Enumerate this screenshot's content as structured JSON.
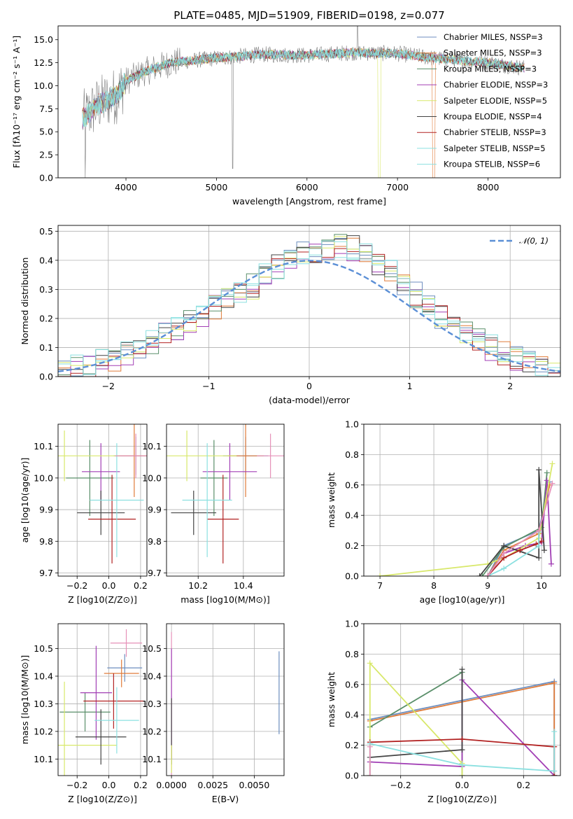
{
  "title": "PLATE=0485, MJD=51909, FIBERID=0198, z=0.077",
  "colors": [
    "#6c8ebf",
    "#e07b39",
    "#5a8f6a",
    "#a23fb5",
    "#d8e86a",
    "#444444",
    "#b22222",
    "#8be0e0",
    "#e691b8",
    "#999999"
  ],
  "chart_data": [
    {
      "id": "spectrum",
      "type": "line",
      "title": "PLATE=0485, MJD=51909, FIBERID=0198, z=0.077",
      "xlabel": "wavelength [Angstrom, rest frame]",
      "ylabel": "Flux [fλ10⁻¹⁷ erg cm⁻² s⁻¹ A⁻¹]",
      "xlim": [
        3250,
        8800
      ],
      "ylim": [
        0,
        16.5
      ],
      "xticks": [
        "4000",
        "5000",
        "6000",
        "7000",
        "8000"
      ],
      "yticks": [
        "0.0",
        "2.5",
        "5.0",
        "7.5",
        "10.0",
        "12.5",
        "15.0"
      ],
      "legend": [
        "Chabrier MILES, NSSP=3",
        "Salpeter MILES, NSSP=3",
        "Kroupa MILES, NSSP=3",
        "Chabrier ELODIE, NSSP=3",
        "Salpeter ELODIE, NSSP=5",
        "Kroupa ELODIE, NSSP=4",
        "Chabrier STELIB, NSSP=3",
        "Salpeter STELIB, NSSP=5",
        "Kroupa STELIB, NSSP=6"
      ],
      "legend_loc": "upper right",
      "continuum": [
        [
          3500,
          6.2
        ],
        [
          3700,
          8.0
        ],
        [
          3900,
          9.0
        ],
        [
          4000,
          10.5
        ],
        [
          4200,
          11.5
        ],
        [
          4500,
          12.5
        ],
        [
          5000,
          13.0
        ],
        [
          5500,
          13.4
        ],
        [
          6000,
          13.3
        ],
        [
          6500,
          13.6
        ],
        [
          7000,
          13.5
        ],
        [
          7400,
          13.0
        ],
        [
          8000,
          12.5
        ],
        [
          8500,
          11.8
        ]
      ]
    },
    {
      "id": "residuals",
      "type": "histogram",
      "xlabel": "(data-model)/error",
      "ylabel": "Normed distribution",
      "xlim": [
        -2.5,
        2.5
      ],
      "ylim": [
        0,
        0.52
      ],
      "xticks": [
        "−2",
        "−1",
        "0",
        "1",
        "2"
      ],
      "yticks": [
        "0.0",
        "0.1",
        "0.2",
        "0.3",
        "0.4",
        "0.5"
      ],
      "legend": [
        "𝒩(0, 1)"
      ],
      "legend_loc": "upper right",
      "bins": 40,
      "values": [
        0.02,
        0.03,
        0.04,
        0.05,
        0.06,
        0.08,
        0.1,
        0.12,
        0.14,
        0.16,
        0.19,
        0.21,
        0.24,
        0.26,
        0.29,
        0.31,
        0.35,
        0.38,
        0.4,
        0.42,
        0.43,
        0.44,
        0.45,
        0.44,
        0.42,
        0.39,
        0.36,
        0.32,
        0.28,
        0.25,
        0.21,
        0.18,
        0.15,
        0.12,
        0.1,
        0.08,
        0.06,
        0.045,
        0.035,
        0.02
      ]
    },
    {
      "id": "age_vs_Z",
      "type": "errorbar",
      "xlabel": "Z [log10(Z/Z⊙)]",
      "ylabel": "age  [log10(age/yr)]",
      "xlim": [
        -0.32,
        0.24
      ],
      "ylim": [
        9.69,
        10.17
      ],
      "xticks": [
        "−0.2",
        "0.0",
        "0.2"
      ],
      "yticks": [
        "9.7",
        "9.8",
        "9.9",
        "10.0",
        "10.1"
      ],
      "points": [
        {
          "x": 0.17,
          "y": 10.07,
          "xerr": 0.14,
          "yerr": 0.06,
          "c": 0
        },
        {
          "x": 0.16,
          "y": 10.07,
          "xerr": 0.12,
          "yerr": 0.13,
          "c": 1
        },
        {
          "x": -0.12,
          "y": 10.0,
          "xerr": 0.15,
          "yerr": 0.12,
          "c": 2
        },
        {
          "x": -0.05,
          "y": 10.02,
          "xerr": 0.12,
          "yerr": 0.09,
          "c": 3
        },
        {
          "x": -0.28,
          "y": 10.07,
          "xerr": 0.35,
          "yerr": 0.08,
          "c": 4
        },
        {
          "x": -0.05,
          "y": 9.89,
          "xerr": 0.15,
          "yerr": 0.07,
          "c": 5
        },
        {
          "x": 0.02,
          "y": 9.87,
          "xerr": 0.15,
          "yerr": 0.14,
          "c": 6
        },
        {
          "x": 0.05,
          "y": 9.93,
          "xerr": 0.17,
          "yerr": 0.18,
          "c": 7
        },
        {
          "x": 0.17,
          "y": 10.07,
          "xerr": 0.13,
          "yerr": 0.07,
          "c": 8
        }
      ]
    },
    {
      "id": "age_vs_mass",
      "type": "errorbar",
      "xlabel": "mass [log10(M/M⊙)]",
      "ylabel": "",
      "xlim": [
        10.06,
        10.58
      ],
      "ylim": [
        9.69,
        10.17
      ],
      "xticks": [
        "10.2",
        "10.4"
      ],
      "yticks": [
        "9.7",
        "9.8",
        "9.9",
        "10.0",
        "10.1"
      ],
      "points": [
        {
          "x": 10.41,
          "y": 10.07,
          "xerr": 0.1,
          "yerr": 0.06,
          "c": 0
        },
        {
          "x": 10.41,
          "y": 10.07,
          "xerr": 0.08,
          "yerr": 0.13,
          "c": 1
        },
        {
          "x": 10.27,
          "y": 10.0,
          "xerr": 0.06,
          "yerr": 0.12,
          "c": 2
        },
        {
          "x": 10.34,
          "y": 10.02,
          "xerr": 0.12,
          "yerr": 0.09,
          "c": 3
        },
        {
          "x": 10.15,
          "y": 10.07,
          "xerr": 0.22,
          "yerr": 0.08,
          "c": 4
        },
        {
          "x": 10.18,
          "y": 9.89,
          "xerr": 0.1,
          "yerr": 0.07,
          "c": 5
        },
        {
          "x": 10.31,
          "y": 9.87,
          "xerr": 0.07,
          "yerr": 0.14,
          "c": 6
        },
        {
          "x": 10.24,
          "y": 9.93,
          "xerr": 0.11,
          "yerr": 0.18,
          "c": 7
        },
        {
          "x": 10.52,
          "y": 10.07,
          "xerr": 0.06,
          "yerr": 0.07,
          "c": 8
        }
      ]
    },
    {
      "id": "weight_vs_age",
      "type": "line",
      "xlabel": "age  [log10(age/yr)]",
      "ylabel": "mass weight",
      "xlim": [
        6.7,
        10.35
      ],
      "ylim": [
        0,
        1.0
      ],
      "xticks": [
        "7",
        "8",
        "9",
        "10"
      ],
      "yticks": [
        "0.0",
        "0.2",
        "0.4",
        "0.6",
        "0.8",
        "1.0"
      ],
      "series": [
        {
          "c": 0,
          "x": [
            9.0,
            9.3,
            9.95,
            10.15
          ],
          "y": [
            0.0,
            0.2,
            0.3,
            0.62
          ]
        },
        {
          "c": 1,
          "x": [
            9.0,
            9.3,
            9.95,
            10.15
          ],
          "y": [
            0.0,
            0.17,
            0.28,
            0.6
          ]
        },
        {
          "c": 2,
          "x": [
            8.9,
            9.3,
            10.0,
            10.1
          ],
          "y": [
            0.0,
            0.19,
            0.32,
            0.68
          ]
        },
        {
          "c": 3,
          "x": [
            9.0,
            9.3,
            9.7,
            10.0,
            10.1,
            10.18
          ],
          "y": [
            0.0,
            0.15,
            0.2,
            0.22,
            0.63,
            0.08
          ]
        },
        {
          "c": 4,
          "x": [
            7.0,
            9.0,
            9.3,
            9.95,
            10.2
          ],
          "y": [
            0.0,
            0.08,
            0.12,
            0.25,
            0.74
          ]
        },
        {
          "c": 5,
          "x": [
            8.85,
            9.3,
            9.95,
            9.95,
            10.05
          ],
          "y": [
            0.0,
            0.2,
            0.12,
            0.7,
            0.17
          ]
        },
        {
          "c": 6,
          "x": [
            9.0,
            9.3,
            9.6,
            9.9,
            10.0
          ],
          "y": [
            0.0,
            0.12,
            0.17,
            0.21,
            0.23
          ]
        },
        {
          "c": 7,
          "x": [
            9.0,
            9.3,
            9.95,
            9.95
          ],
          "y": [
            0.0,
            0.05,
            0.2,
            0.29
          ]
        },
        {
          "c": 8,
          "x": [
            9.0,
            9.3,
            9.95,
            10.2
          ],
          "y": [
            0.0,
            0.15,
            0.3,
            0.61
          ]
        }
      ]
    },
    {
      "id": "mass_vs_Z",
      "type": "errorbar",
      "xlabel": "Z [log10(Z/Z⊙)]",
      "ylabel": "mass [log10(M/M⊙)]",
      "xlim": [
        -0.32,
        0.24
      ],
      "ylim": [
        10.04,
        10.59
      ],
      "xticks": [
        "−0.2",
        "0.0",
        "0.2"
      ],
      "yticks": [
        "10.1",
        "10.2",
        "10.3",
        "10.4",
        "10.5"
      ],
      "points": [
        {
          "x": 0.1,
          "y": 10.43,
          "xerr": 0.11,
          "yerr": 0.05,
          "c": 0
        },
        {
          "x": 0.08,
          "y": 10.41,
          "xerr": 0.11,
          "yerr": 0.05,
          "c": 1
        },
        {
          "x": -0.15,
          "y": 10.27,
          "xerr": 0.16,
          "yerr": 0.07,
          "c": 2
        },
        {
          "x": -0.08,
          "y": 10.34,
          "xerr": 0.1,
          "yerr": 0.17,
          "c": 3
        },
        {
          "x": -0.28,
          "y": 10.15,
          "xerr": 0.33,
          "yerr": 0.23,
          "c": 4
        },
        {
          "x": -0.05,
          "y": 10.18,
          "xerr": 0.16,
          "yerr": 0.1,
          "c": 5
        },
        {
          "x": 0.03,
          "y": 10.31,
          "xerr": 0.19,
          "yerr": 0.1,
          "c": 6
        },
        {
          "x": 0.05,
          "y": 10.24,
          "xerr": 0.14,
          "yerr": 0.12,
          "c": 7
        },
        {
          "x": 0.11,
          "y": 10.52,
          "xerr": 0.1,
          "yerr": 0.05,
          "c": 8
        }
      ]
    },
    {
      "id": "mass_vs_ebv",
      "type": "errorbar",
      "xlabel": "E(B-V)",
      "ylabel": "",
      "xlim": [
        -0.0003,
        0.0068
      ],
      "ylim": [
        10.04,
        10.59
      ],
      "xticks": [
        "0.0000",
        "0.0025",
        "0.0050"
      ],
      "yticks": [
        "10.1",
        "10.2",
        "10.3",
        "10.4",
        "10.5"
      ],
      "points": [
        {
          "x": 0.0065,
          "y": 10.34,
          "xerr": 0,
          "yerr": 0.15,
          "c": 0
        },
        {
          "x": 0.0,
          "y": 10.3,
          "xerr": 0,
          "yerr": 0.26,
          "c": 8
        },
        {
          "x": 0.0,
          "y": 10.3,
          "xerr": 0,
          "yerr": 0.2,
          "c": 3
        },
        {
          "x": 0.0,
          "y": 10.2,
          "xerr": 0,
          "yerr": 0.12,
          "c": 5
        },
        {
          "x": 0.0,
          "y": 10.1,
          "xerr": 0,
          "yerr": 0.05,
          "c": 4
        }
      ]
    },
    {
      "id": "weight_vs_Z",
      "type": "line",
      "xlabel": "Z [log10(Z/Z⊙)]",
      "ylabel": "mass weight",
      "xlim": [
        -0.32,
        0.32
      ],
      "ylim": [
        0,
        1.0
      ],
      "xticks": [
        "−0.2",
        "0.0",
        "0.2"
      ],
      "yticks": [
        "0.0",
        "0.2",
        "0.4",
        "0.6",
        "0.8",
        "1.0"
      ],
      "series": [
        {
          "c": 0,
          "x": [
            -0.3,
            0.3,
            0.3
          ],
          "y": [
            0.37,
            0.62,
            0.0
          ]
        },
        {
          "c": 1,
          "x": [
            -0.3,
            0.3,
            0.3
          ],
          "y": [
            0.36,
            0.61,
            0.0
          ]
        },
        {
          "c": 2,
          "x": [
            -0.3,
            0.0,
            0.0
          ],
          "y": [
            0.32,
            0.68,
            0.0
          ]
        },
        {
          "c": 3,
          "x": [
            -0.3,
            0.0,
            0.0,
            0.3,
            0.3
          ],
          "y": [
            0.09,
            0.06,
            0.63,
            0.0,
            0.0
          ]
        },
        {
          "c": 4,
          "x": [
            -0.3,
            -0.3,
            0.0,
            0.0
          ],
          "y": [
            0.0,
            0.74,
            0.08,
            0.0
          ]
        },
        {
          "c": 5,
          "x": [
            -0.3,
            0.0,
            0.0
          ],
          "y": [
            0.12,
            0.17,
            0.7
          ]
        },
        {
          "c": 6,
          "x": [
            -0.3,
            0.0,
            0.3,
            0.3
          ],
          "y": [
            0.22,
            0.24,
            0.19,
            0.0
          ]
        },
        {
          "c": 7,
          "x": [
            -0.3,
            -0.3,
            0.0,
            0.3,
            0.3
          ],
          "y": [
            0.0,
            0.21,
            0.07,
            0.03,
            0.29
          ]
        },
        {
          "c": 8,
          "x": [
            -0.3,
            -0.3
          ],
          "y": [
            0.0,
            0.19
          ]
        }
      ]
    }
  ]
}
